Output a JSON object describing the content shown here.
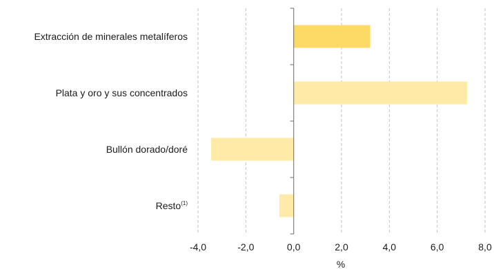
{
  "chart_data": {
    "type": "bar",
    "orientation": "horizontal",
    "categories": [
      "Extracción de minerales metalíferos",
      "Plata y oro y sus concentrados",
      "Bullón dorado/doré",
      "Resto"
    ],
    "category_superscripts": [
      "",
      "",
      "",
      "(1)"
    ],
    "values": [
      3.2,
      7.25,
      -3.45,
      -0.6
    ],
    "bar_colors": [
      "#fdd966",
      "#ffeaa8",
      "#ffeaa8",
      "#ffeaa8"
    ],
    "xlim": [
      -4.0,
      8.0
    ],
    "xticks": [
      -4.0,
      -2.0,
      0.0,
      2.0,
      4.0,
      6.0,
      8.0
    ],
    "xtick_labels": [
      "-4,0",
      "-2,0",
      "0,0",
      "2,0",
      "4,0",
      "6,0",
      "8,0"
    ],
    "xlabel": "%",
    "ylabel": "",
    "title": "",
    "grid": "vertical-dashed",
    "gridline_color": "#bfbfbf",
    "axis_color": "#7f7f7f"
  }
}
